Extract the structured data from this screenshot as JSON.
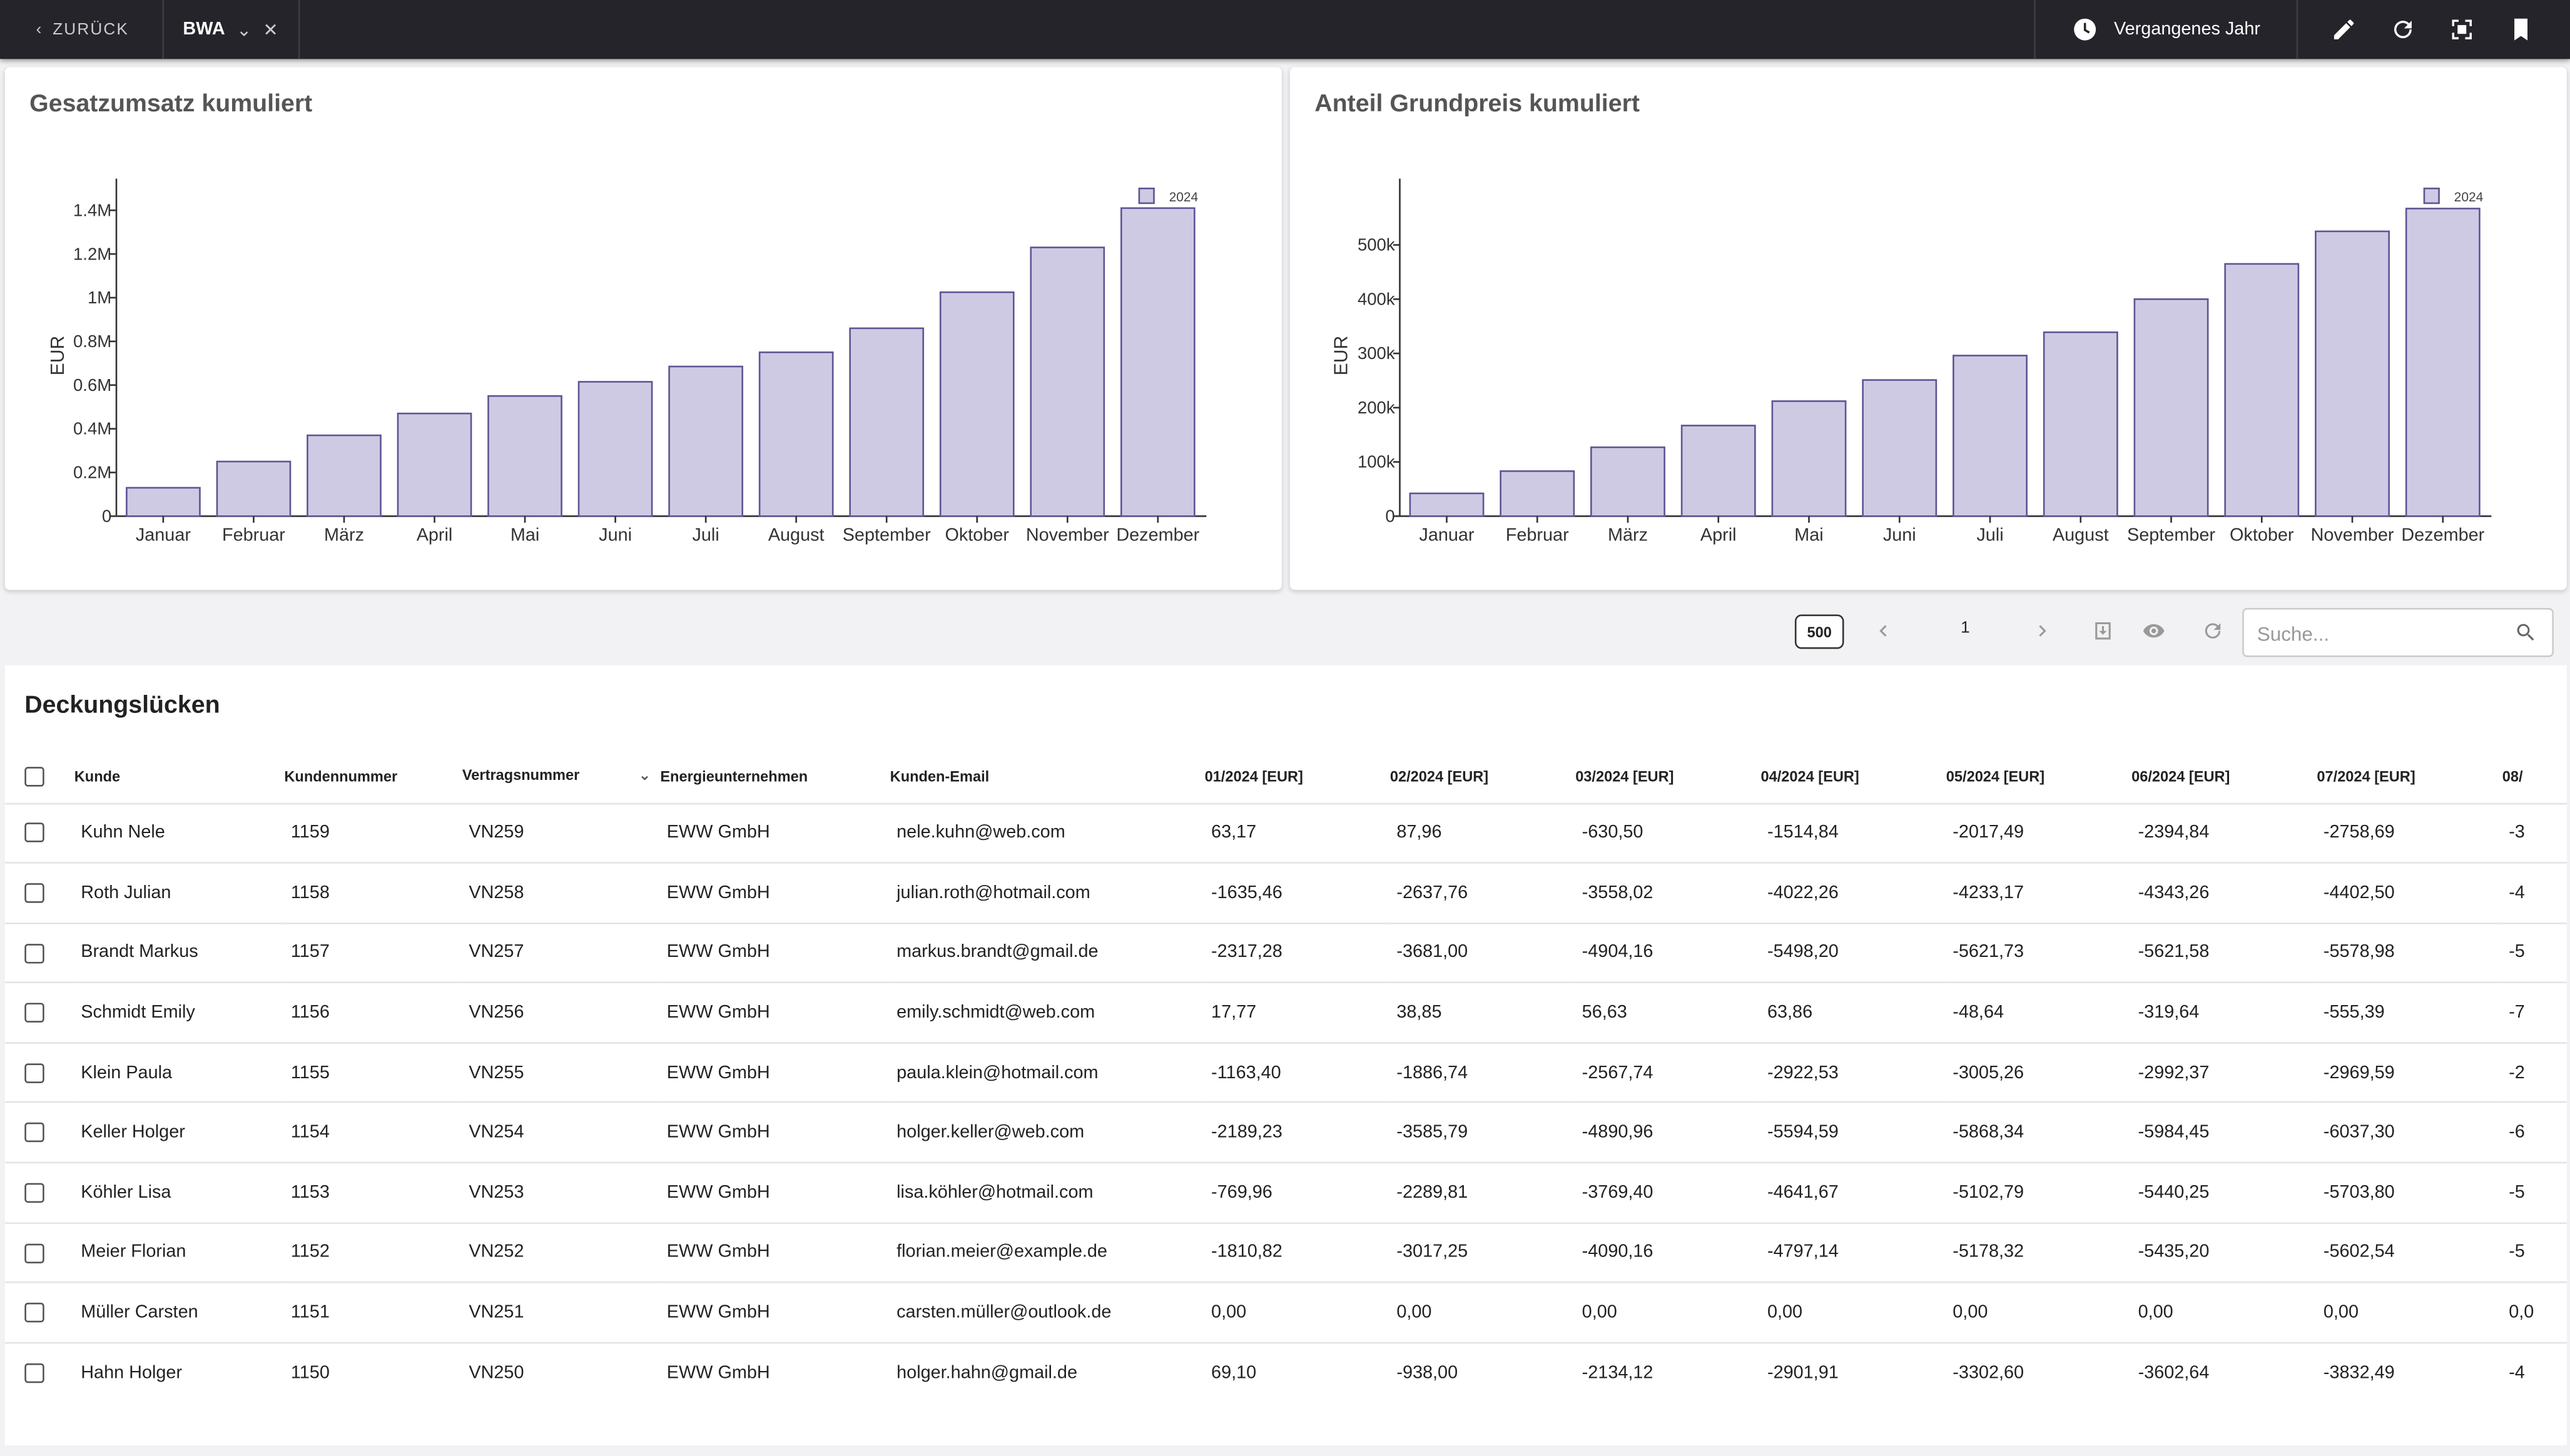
{
  "topbar": {
    "back_label": "ZURÜCK",
    "tab_label": "BWA",
    "range_label": "Vergangenes Jahr",
    "icons": [
      "pencil-icon",
      "refresh-icon",
      "fullscreen-icon",
      "bookmark-icon"
    ]
  },
  "charts": {
    "left": {
      "title": "Gesatzumsatz kumuliert",
      "ylabel": "EUR",
      "legend": "2024",
      "yticks": [
        "0",
        "0.2M",
        "0.4M",
        "0.6M",
        "0.8M",
        "1M",
        "1.2M",
        "1.4M"
      ]
    },
    "right": {
      "title": "Anteil Grundpreis kumuliert",
      "ylabel": "EUR",
      "legend": "2024",
      "yticks": [
        "0",
        "100k",
        "200k",
        "300k",
        "400k",
        "500k"
      ]
    }
  },
  "chart_data": [
    {
      "type": "bar",
      "title": "Gesatzumsatz kumuliert",
      "xlabel": "",
      "ylabel": "EUR",
      "ylim": [
        0,
        1470000
      ],
      "categories": [
        "Januar",
        "Februar",
        "März",
        "April",
        "Mai",
        "Juni",
        "Juli",
        "August",
        "September",
        "Oktober",
        "November",
        "Dezember"
      ],
      "series": [
        {
          "name": "2024",
          "values": [
            130000,
            250000,
            370000,
            470000,
            550000,
            615000,
            685000,
            750000,
            860000,
            1025000,
            1230000,
            1410000
          ]
        }
      ],
      "legend": "top-right",
      "color": "#cfcae3",
      "border": "#5e5594"
    },
    {
      "type": "bar",
      "title": "Anteil Grundpreis kumuliert",
      "xlabel": "",
      "ylabel": "EUR",
      "ylim": [
        0,
        592000
      ],
      "categories": [
        "Januar",
        "Februar",
        "März",
        "April",
        "Mai",
        "Juni",
        "Juli",
        "August",
        "September",
        "Oktober",
        "November",
        "Dezember"
      ],
      "series": [
        {
          "name": "2024",
          "values": [
            42000,
            83000,
            127000,
            167000,
            212000,
            251000,
            296000,
            339000,
            400000,
            465000,
            525000,
            567000
          ]
        }
      ],
      "legend": "top-right",
      "color": "#cfcae3",
      "border": "#5e5594"
    }
  ],
  "toolbar": {
    "page_size": "500",
    "page_number": "1",
    "search_placeholder": "Suche..."
  },
  "table": {
    "title": "Deckungslücken",
    "columns": [
      "Kunde",
      "Kundennummer",
      "Vertragsnummer",
      "Energieunternehmen",
      "Kunden-Email",
      "01/2024 [EUR]",
      "02/2024 [EUR]",
      "03/2024 [EUR]",
      "04/2024 [EUR]",
      "05/2024 [EUR]",
      "06/2024 [EUR]",
      "07/2024 [EUR]",
      "08/"
    ],
    "rows": [
      [
        "Kuhn Nele",
        "1159",
        "VN259",
        "EWW GmbH",
        "nele.kuhn@web.com",
        "63,17",
        "87,96",
        "-630,50",
        "-1514,84",
        "-2017,49",
        "-2394,84",
        "-2758,69",
        "-3"
      ],
      [
        "Roth Julian",
        "1158",
        "VN258",
        "EWW GmbH",
        "julian.roth@hotmail.com",
        "-1635,46",
        "-2637,76",
        "-3558,02",
        "-4022,26",
        "-4233,17",
        "-4343,26",
        "-4402,50",
        "-4"
      ],
      [
        "Brandt Markus",
        "1157",
        "VN257",
        "EWW GmbH",
        "markus.brandt@gmail.de",
        "-2317,28",
        "-3681,00",
        "-4904,16",
        "-5498,20",
        "-5621,73",
        "-5621,58",
        "-5578,98",
        "-5"
      ],
      [
        "Schmidt Emily",
        "1156",
        "VN256",
        "EWW GmbH",
        "emily.schmidt@web.com",
        "17,77",
        "38,85",
        "56,63",
        "63,86",
        "-48,64",
        "-319,64",
        "-555,39",
        "-7"
      ],
      [
        "Klein Paula",
        "1155",
        "VN255",
        "EWW GmbH",
        "paula.klein@hotmail.com",
        "-1163,40",
        "-1886,74",
        "-2567,74",
        "-2922,53",
        "-3005,26",
        "-2992,37",
        "-2969,59",
        "-2"
      ],
      [
        "Keller Holger",
        "1154",
        "VN254",
        "EWW GmbH",
        "holger.keller@web.com",
        "-2189,23",
        "-3585,79",
        "-4890,96",
        "-5594,59",
        "-5868,34",
        "-5984,45",
        "-6037,30",
        "-6"
      ],
      [
        "Köhler Lisa",
        "1153",
        "VN253",
        "EWW GmbH",
        "lisa.köhler@hotmail.com",
        "-769,96",
        "-2289,81",
        "-3769,40",
        "-4641,67",
        "-5102,79",
        "-5440,25",
        "-5703,80",
        "-5"
      ],
      [
        "Meier Florian",
        "1152",
        "VN252",
        "EWW GmbH",
        "florian.meier@example.de",
        "-1810,82",
        "-3017,25",
        "-4090,16",
        "-4797,14",
        "-5178,32",
        "-5435,20",
        "-5602,54",
        "-5"
      ],
      [
        "Müller Carsten",
        "1151",
        "VN251",
        "EWW GmbH",
        "carsten.müller@outlook.de",
        "0,00",
        "0,00",
        "0,00",
        "0,00",
        "0,00",
        "0,00",
        "0,00",
        "0,0"
      ],
      [
        "Hahn Holger",
        "1150",
        "VN250",
        "EWW GmbH",
        "holger.hahn@gmail.de",
        "69,10",
        "-938,00",
        "-2134,12",
        "-2901,91",
        "-3302,60",
        "-3602,64",
        "-3832,49",
        "-4"
      ]
    ]
  }
}
